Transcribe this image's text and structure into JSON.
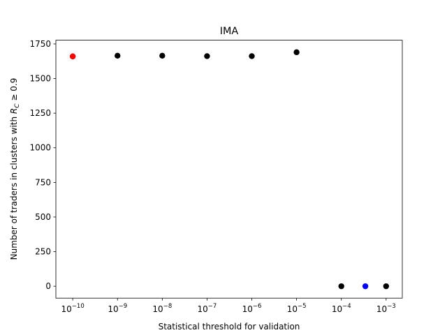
{
  "chart_data": {
    "type": "scatter",
    "title": "IMA",
    "xlabel": "Statistical threshold for validation",
    "ylabel": {
      "text": "Number of traders in clusters with ",
      "var": "R",
      "sub": "C",
      "rest": " ≥ 0.9"
    },
    "xscale": "log",
    "xlim": [
      4.2e-11,
      0.0023
    ],
    "xticks": [
      {
        "value": 1e-10,
        "label": "10",
        "exponent": "−10"
      },
      {
        "value": 1e-09,
        "label": "10",
        "exponent": "−9"
      },
      {
        "value": 1e-08,
        "label": "10",
        "exponent": "−8"
      },
      {
        "value": 1e-07,
        "label": "10",
        "exponent": "−7"
      },
      {
        "value": 1e-06,
        "label": "10",
        "exponent": "−6"
      },
      {
        "value": 1e-05,
        "label": "10",
        "exponent": "−5"
      },
      {
        "value": 0.0001,
        "label": "10",
        "exponent": "−4"
      },
      {
        "value": 0.001,
        "label": "10",
        "exponent": "−3"
      }
    ],
    "ylim": [
      -86,
      1777
    ],
    "yticks": [
      0,
      250,
      500,
      750,
      1000,
      1250,
      1500,
      1750
    ],
    "grid": false,
    "series": [
      {
        "color": "#000000",
        "x": [
          1e-10,
          1e-09,
          1e-08,
          1e-07,
          1e-06,
          1e-05,
          0.0001,
          0.001
        ],
        "values": [
          1660,
          1665,
          1665,
          1662,
          1662,
          1690,
          0,
          0
        ]
      },
      {
        "color": "#ff0000",
        "x": [
          1e-10
        ],
        "values": [
          1660
        ]
      },
      {
        "color": "#0000ff",
        "x": [
          0.000344
        ],
        "values": [
          0
        ]
      }
    ]
  }
}
